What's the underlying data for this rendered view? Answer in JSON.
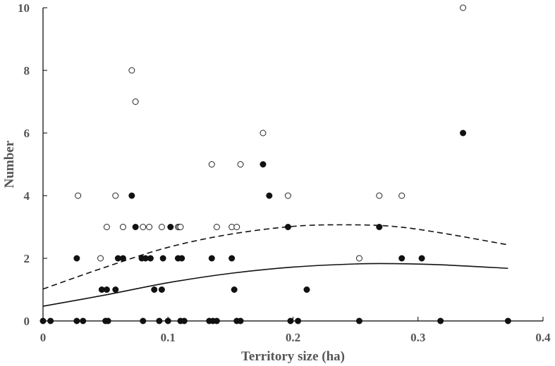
{
  "chart_data": {
    "type": "scatter",
    "xlabel": "Territory size (ha)",
    "ylabel": "Number",
    "xlim": [
      0,
      0.4
    ],
    "ylim": [
      0,
      10
    ],
    "xticks": [
      0,
      0.1,
      0.2,
      0.3,
      0.4
    ],
    "xtick_labels": [
      "0",
      "0.1",
      "0.2",
      "0.3",
      "0.4"
    ],
    "yticks": [
      0,
      2,
      4,
      6,
      8,
      10
    ],
    "ytick_labels": [
      "0",
      "2",
      "4",
      "6",
      "8",
      "10"
    ],
    "grid": false,
    "series": [
      {
        "marker": "filled-circle",
        "points": [
          [
            0.0,
            0
          ],
          [
            0.006,
            0
          ],
          [
            0.027,
            0
          ],
          [
            0.032,
            0
          ],
          [
            0.05,
            0
          ],
          [
            0.052,
            0
          ],
          [
            0.08,
            0
          ],
          [
            0.093,
            0
          ],
          [
            0.1,
            0
          ],
          [
            0.11,
            0
          ],
          [
            0.113,
            0
          ],
          [
            0.133,
            0
          ],
          [
            0.136,
            0
          ],
          [
            0.139,
            0
          ],
          [
            0.155,
            0
          ],
          [
            0.158,
            0
          ],
          [
            0.198,
            0
          ],
          [
            0.204,
            0
          ],
          [
            0.253,
            0
          ],
          [
            0.318,
            0
          ],
          [
            0.372,
            0
          ],
          [
            0.047,
            1
          ],
          [
            0.051,
            1
          ],
          [
            0.058,
            1
          ],
          [
            0.089,
            1
          ],
          [
            0.095,
            1
          ],
          [
            0.153,
            1
          ],
          [
            0.211,
            1
          ],
          [
            0.027,
            2
          ],
          [
            0.06,
            2
          ],
          [
            0.064,
            2
          ],
          [
            0.079,
            2
          ],
          [
            0.082,
            2
          ],
          [
            0.086,
            2
          ],
          [
            0.096,
            2
          ],
          [
            0.108,
            2
          ],
          [
            0.111,
            2
          ],
          [
            0.135,
            2
          ],
          [
            0.151,
            2
          ],
          [
            0.287,
            2
          ],
          [
            0.303,
            2
          ],
          [
            0.074,
            3
          ],
          [
            0.102,
            3
          ],
          [
            0.196,
            3
          ],
          [
            0.269,
            3
          ],
          [
            0.071,
            4
          ],
          [
            0.181,
            4
          ],
          [
            0.176,
            5
          ],
          [
            0.336,
            6
          ]
        ]
      },
      {
        "marker": "open-circle",
        "points": [
          [
            0.028,
            4
          ],
          [
            0.058,
            4
          ],
          [
            0.196,
            4
          ],
          [
            0.269,
            4
          ],
          [
            0.287,
            4
          ],
          [
            0.046,
            2
          ],
          [
            0.253,
            2
          ],
          [
            0.051,
            3
          ],
          [
            0.064,
            3
          ],
          [
            0.08,
            3
          ],
          [
            0.085,
            3
          ],
          [
            0.095,
            3
          ],
          [
            0.108,
            3
          ],
          [
            0.109,
            3
          ],
          [
            0.11,
            3
          ],
          [
            0.139,
            3
          ],
          [
            0.151,
            3
          ],
          [
            0.155,
            3
          ],
          [
            0.135,
            5
          ],
          [
            0.158,
            5
          ],
          [
            0.176,
            6
          ],
          [
            0.071,
            8
          ],
          [
            0.074,
            7
          ],
          [
            0.336,
            10
          ]
        ]
      }
    ],
    "fits": [
      {
        "style": "solid",
        "points": [
          [
            0.0,
            0.47
          ],
          [
            0.05,
            0.83
          ],
          [
            0.1,
            1.22
          ],
          [
            0.15,
            1.52
          ],
          [
            0.2,
            1.72
          ],
          [
            0.25,
            1.82
          ],
          [
            0.28,
            1.83
          ],
          [
            0.32,
            1.79
          ],
          [
            0.372,
            1.68
          ]
        ]
      },
      {
        "style": "dashed",
        "points": [
          [
            0.0,
            1.02
          ],
          [
            0.05,
            1.72
          ],
          [
            0.1,
            2.35
          ],
          [
            0.15,
            2.77
          ],
          [
            0.2,
            3.02
          ],
          [
            0.24,
            3.07
          ],
          [
            0.28,
            3.02
          ],
          [
            0.32,
            2.8
          ],
          [
            0.372,
            2.43
          ]
        ]
      }
    ]
  }
}
